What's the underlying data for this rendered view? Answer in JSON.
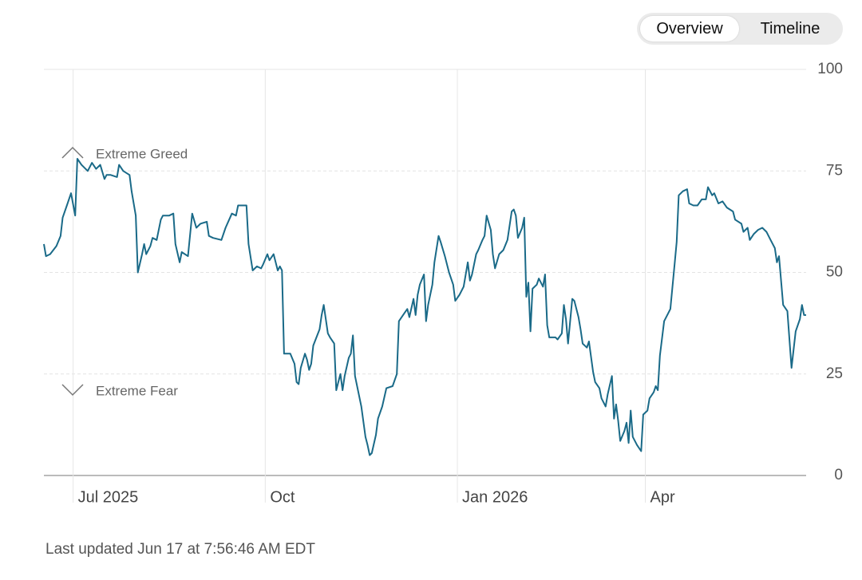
{
  "toggle": {
    "options": [
      "Overview",
      "Timeline"
    ]
  },
  "footer": "Last updated Jun 17 at 7:56:46 AM EDT",
  "chart_data": {
    "type": "line",
    "annotations": [
      "Extreme Greed",
      "Extreme Fear"
    ],
    "color": "#1a6a88",
    "grid": true,
    "xlim": [
      0,
      365
    ],
    "xticks": [
      {
        "value": 14,
        "label": "Jul 2025"
      },
      {
        "value": 106,
        "label": "Oct"
      },
      {
        "value": 198,
        "label": "Jan 2026"
      },
      {
        "value": 288,
        "label": "Apr"
      }
    ],
    "ylim": [
      0,
      100
    ],
    "yticks": [
      0,
      25,
      50,
      75,
      100
    ],
    "x": [
      0,
      1,
      3,
      6,
      8,
      9,
      11,
      13,
      15,
      16,
      18,
      21,
      23,
      25,
      27,
      29,
      30,
      32,
      35,
      36,
      38,
      41,
      42,
      44,
      45,
      47,
      48,
      49,
      51,
      52,
      54,
      56,
      57,
      60,
      62,
      63,
      65,
      66,
      69,
      71,
      73,
      75,
      78,
      79,
      81,
      85,
      87,
      90,
      92,
      93,
      95,
      97,
      98,
      100,
      102,
      104,
      105,
      107,
      108,
      110,
      112,
      113,
      114,
      115,
      118,
      120,
      121,
      122,
      123,
      125,
      126,
      127,
      128,
      129,
      132,
      133,
      134,
      136,
      137,
      139,
      140,
      141,
      142,
      143,
      144,
      146,
      147,
      148,
      149,
      152,
      154,
      155,
      156,
      157,
      159,
      160,
      162,
      164,
      167,
      169,
      170,
      172,
      174,
      175,
      177,
      178,
      179,
      180,
      182,
      183,
      184,
      186,
      187,
      189,
      190,
      192,
      194,
      196,
      197,
      199,
      201,
      203,
      204,
      205,
      207,
      208,
      210,
      211,
      212,
      214,
      215,
      216,
      218,
      220,
      222,
      224,
      225,
      226,
      227,
      229,
      230,
      231,
      232,
      233,
      234,
      236,
      237,
      239,
      240,
      241,
      242,
      245,
      246,
      248,
      249,
      250,
      251,
      253,
      254,
      256,
      257,
      258,
      260,
      261,
      263,
      264,
      266,
      267,
      269,
      270,
      272,
      273,
      274,
      275,
      276,
      278,
      279,
      280,
      281,
      282,
      284,
      286,
      287,
      289,
      290,
      292,
      293,
      294,
      295,
      297,
      299,
      300,
      302,
      303,
      304,
      306,
      308,
      309,
      311,
      313,
      315,
      317,
      318,
      320,
      321,
      323,
      325,
      327,
      330,
      331,
      334,
      335,
      337,
      338,
      340,
      342,
      344,
      346,
      348,
      350,
      351,
      352,
      354,
      356,
      358,
      360,
      362,
      363,
      364,
      365
    ],
    "values": [
      57,
      54,
      54.5,
      56.5,
      59,
      63.5,
      66.5,
      69.5,
      64,
      78,
      76.5,
      75,
      77,
      75.5,
      76.5,
      73,
      74,
      74,
      73.5,
      76.5,
      75,
      74,
      70,
      64,
      50,
      54.5,
      57,
      54.5,
      56.5,
      58.5,
      58,
      63,
      64,
      64,
      64.5,
      57,
      52.5,
      55,
      54,
      64.5,
      61,
      62,
      62.5,
      59,
      58.5,
      58,
      61,
      64.5,
      64,
      66.5,
      66.5,
      66.5,
      57,
      50.5,
      51.5,
      51,
      52,
      54.5,
      53,
      54.5,
      50.5,
      51.5,
      50.5,
      30,
      30,
      27.5,
      23,
      22.5,
      26.5,
      30,
      28.5,
      26,
      27.5,
      32,
      36,
      39.5,
      42,
      35,
      34,
      32.5,
      21,
      23,
      25,
      21,
      24.5,
      29,
      30,
      34.5,
      24.5,
      17,
      9.5,
      7.5,
      5,
      5.5,
      10,
      14,
      17,
      21.5,
      22,
      25,
      38,
      39.5,
      41,
      39,
      43.5,
      39.5,
      44.5,
      47,
      49.5,
      38,
      42,
      47,
      52.5,
      59,
      57.5,
      54,
      50,
      47,
      43,
      44.5,
      46.5,
      52.5,
      48,
      49.5,
      54.5,
      55.5,
      58,
      59,
      64,
      60.5,
      54.5,
      51,
      54.5,
      55.5,
      58,
      65,
      65.5,
      64,
      58.5,
      61,
      63.5,
      44,
      47.5,
      35.5,
      46,
      47,
      48.5,
      46.5,
      49.5,
      37,
      34,
      34,
      33.5,
      35,
      42,
      38.5,
      32.5,
      43.5,
      43,
      39,
      36,
      32.5,
      31.5,
      33,
      25.5,
      23,
      21.5,
      19,
      17,
      20,
      24.5,
      14,
      17.5,
      13.5,
      8.5,
      11,
      13,
      8,
      16,
      9.5,
      7.5,
      6,
      15,
      16,
      19,
      20.5,
      22,
      21,
      29.5,
      38,
      40,
      41,
      52,
      57.5,
      69,
      70,
      70.5,
      67,
      66.5,
      66.5,
      68,
      68,
      71,
      69,
      69.5,
      67,
      67.5,
      66,
      65,
      63,
      62,
      60,
      61,
      58,
      59.5,
      60.5,
      61,
      60,
      58,
      56,
      52.5,
      54,
      42,
      40.5,
      26.5,
      35.5,
      38.5,
      42,
      39.5,
      39.5
    ]
  }
}
